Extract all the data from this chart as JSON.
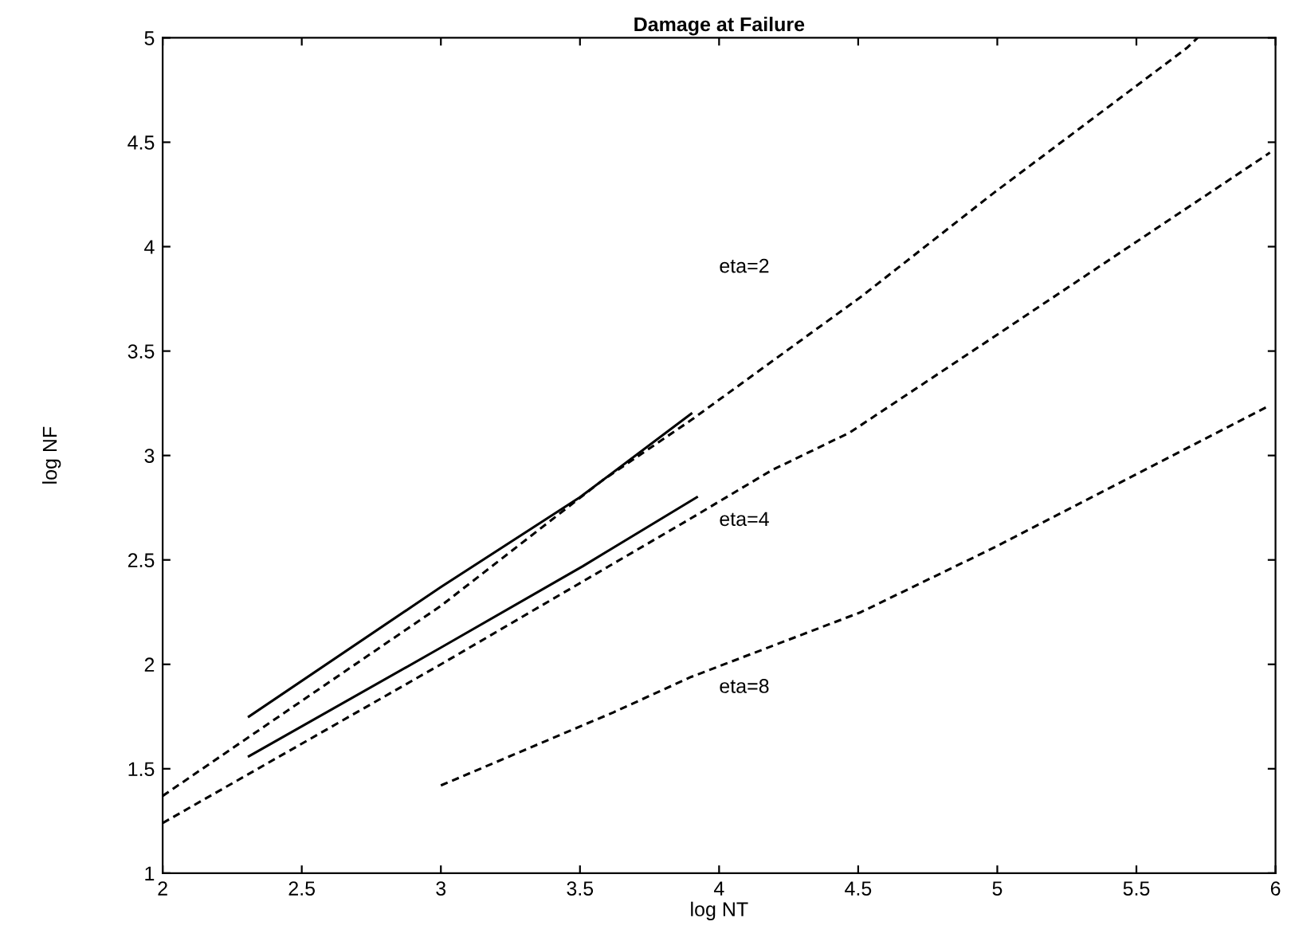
{
  "chart_data": {
    "type": "line",
    "title": "Damage at Failure",
    "xlabel": "log NT",
    "ylabel": "log NF",
    "xlim": [
      2,
      6
    ],
    "ylim": [
      1,
      5
    ],
    "xticks": [
      2,
      2.5,
      3,
      3.5,
      4,
      4.5,
      5,
      5.5,
      6
    ],
    "yticks": [
      1,
      1.5,
      2,
      2.5,
      3,
      3.5,
      4,
      4.5,
      5
    ],
    "grid": false,
    "legend": false,
    "series": [
      {
        "color": "#000000",
        "line_style": "dashed",
        "x": [
          2.0,
          3.0,
          3.58,
          3.9,
          4.51,
          4.99,
          5.68,
          5.72
        ],
        "values": [
          1.37,
          2.28,
          2.88,
          3.17,
          3.76,
          4.26,
          4.95,
          5.0
        ]
      },
      {
        "color": "#000000",
        "line_style": "dashed",
        "x": [
          2.0,
          3.0,
          3.9,
          4.19,
          4.47,
          4.99,
          5.98
        ],
        "values": [
          1.24,
          2.0,
          2.7,
          2.93,
          3.11,
          3.57,
          4.45
        ]
      },
      {
        "color": "#000000",
        "line_style": "dashed",
        "x": [
          3.0,
          3.62,
          3.9,
          4.51,
          4.99,
          5.98
        ],
        "values": [
          1.42,
          1.77,
          1.94,
          2.25,
          2.56,
          3.24
        ]
      },
      {
        "color": "#000000",
        "line_style": "solid",
        "x": [
          2.31,
          3.0,
          3.5,
          3.9
        ],
        "values": [
          1.75,
          2.37,
          2.8,
          3.2
        ]
      },
      {
        "color": "#000000",
        "line_style": "solid",
        "x": [
          2.31,
          3.0,
          3.51,
          3.92
        ],
        "values": [
          1.56,
          2.08,
          2.47,
          2.8
        ]
      }
    ],
    "annotations": [
      "eta=2",
      "eta=4",
      "eta=8"
    ]
  }
}
